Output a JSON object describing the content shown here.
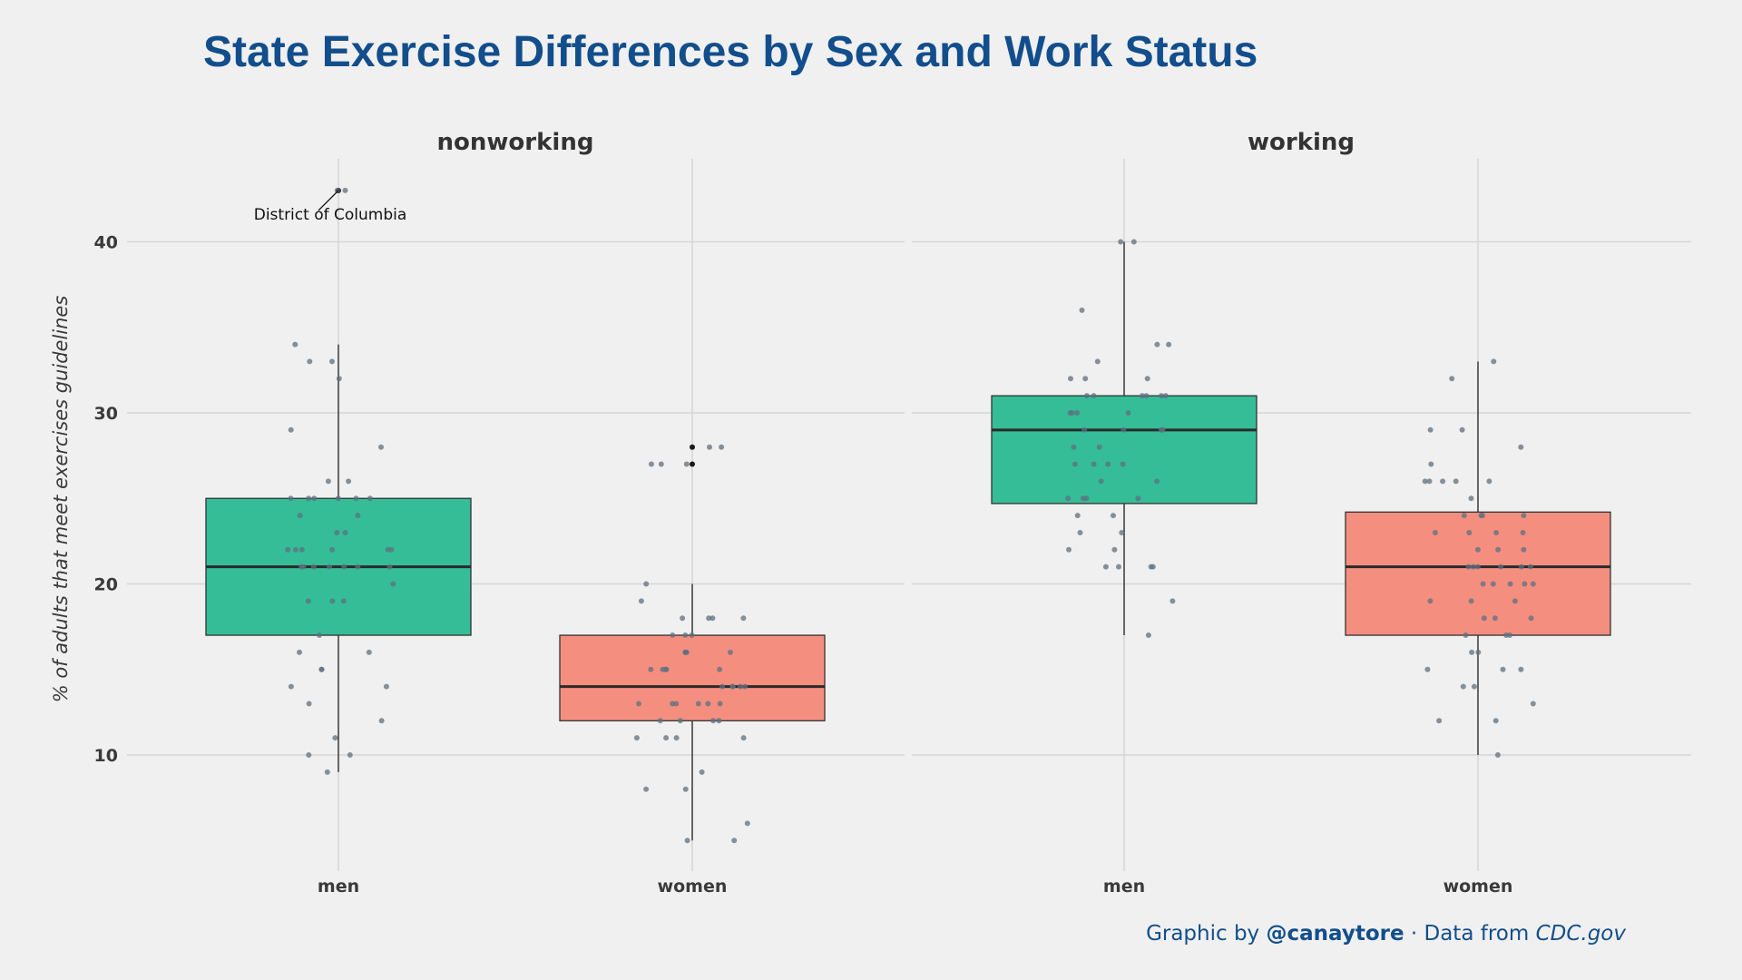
{
  "title": "State Exercise Differences by Sex and Work Status",
  "caption": {
    "prefix": "Graphic by ",
    "handle": "@canaytore",
    "middle": " · Data from ",
    "source": "CDC.gov"
  },
  "colors": {
    "background": "#f0f0f0",
    "title": "#124e8c",
    "men": "#35bd97",
    "women": "#f48f80",
    "point": "#5f7080",
    "grid": "#d6d6d6"
  },
  "chart_data": {
    "type": "box",
    "ylabel": "% of adults that meet exercises guidelines",
    "xlabel": "",
    "yticks": [
      10,
      20,
      30,
      40
    ],
    "ylim": [
      3.5,
      45
    ],
    "grid": true,
    "facets": [
      {
        "name": "nonworking",
        "groups": [
          {
            "category": "men",
            "box": {
              "min": 9,
              "q1": 17,
              "median": 21,
              "q3": 25,
              "max": 34
            },
            "outliers": [
              43
            ],
            "annotation": {
              "text": "District of Columbia",
              "value": 43
            },
            "points": [
              43,
              43,
              34,
              33,
              33,
              32,
              29,
              28,
              26,
              26,
              25,
              25,
              25,
              25,
              25,
              25,
              24,
              24,
              23,
              23,
              22,
              22,
              22,
              22,
              22,
              22,
              21,
              21,
              21,
              21,
              21,
              21,
              21,
              20,
              19,
              19,
              19,
              17,
              16,
              16,
              15,
              15,
              14,
              14,
              13,
              12,
              11,
              10,
              10,
              9
            ]
          },
          {
            "category": "women",
            "box": {
              "min": 5,
              "q1": 12,
              "median": 14,
              "q3": 17,
              "max": 20
            },
            "outliers": [
              28,
              27
            ],
            "points": [
              28,
              28,
              27,
              27,
              27,
              20,
              19,
              18,
              18,
              18,
              18,
              17,
              17,
              17,
              16,
              16,
              16,
              16,
              15,
              15,
              15,
              15,
              15,
              14,
              14,
              14,
              14,
              14,
              13,
              13,
              13,
              13,
              13,
              13,
              12,
              12,
              12,
              12,
              11,
              11,
              11,
              11,
              9,
              8,
              8,
              6,
              5,
              5
            ]
          }
        ]
      },
      {
        "name": "working",
        "groups": [
          {
            "category": "men",
            "box": {
              "min": 17,
              "q1": 24.7,
              "median": 29,
              "q3": 31,
              "max": 40
            },
            "outliers": [],
            "points": [
              40,
              40,
              36,
              34,
              34,
              33,
              32,
              32,
              32,
              31,
              31,
              31,
              31,
              31,
              31,
              30,
              30,
              30,
              30,
              29,
              29,
              29,
              29,
              28,
              28,
              27,
              27,
              27,
              27,
              26,
              26,
              25,
              25,
              25,
              25,
              24,
              24,
              23,
              23,
              22,
              22,
              21,
              21,
              21,
              21,
              19,
              17
            ]
          },
          {
            "category": "women",
            "box": {
              "min": 10,
              "q1": 17,
              "median": 21,
              "q3": 24.2,
              "max": 33
            },
            "outliers": [],
            "points": [
              33,
              32,
              29,
              29,
              28,
              27,
              26,
              26,
              26,
              26,
              26,
              25,
              24,
              24,
              24,
              24,
              23,
              23,
              23,
              23,
              22,
              22,
              22,
              21,
              21,
              21,
              21,
              21,
              21,
              20,
              20,
              20,
              20,
              20,
              19,
              19,
              19,
              18,
              18,
              18,
              17,
              17,
              17,
              16,
              16,
              15,
              15,
              15,
              14,
              14,
              13,
              12,
              12,
              10
            ]
          }
        ]
      }
    ]
  }
}
